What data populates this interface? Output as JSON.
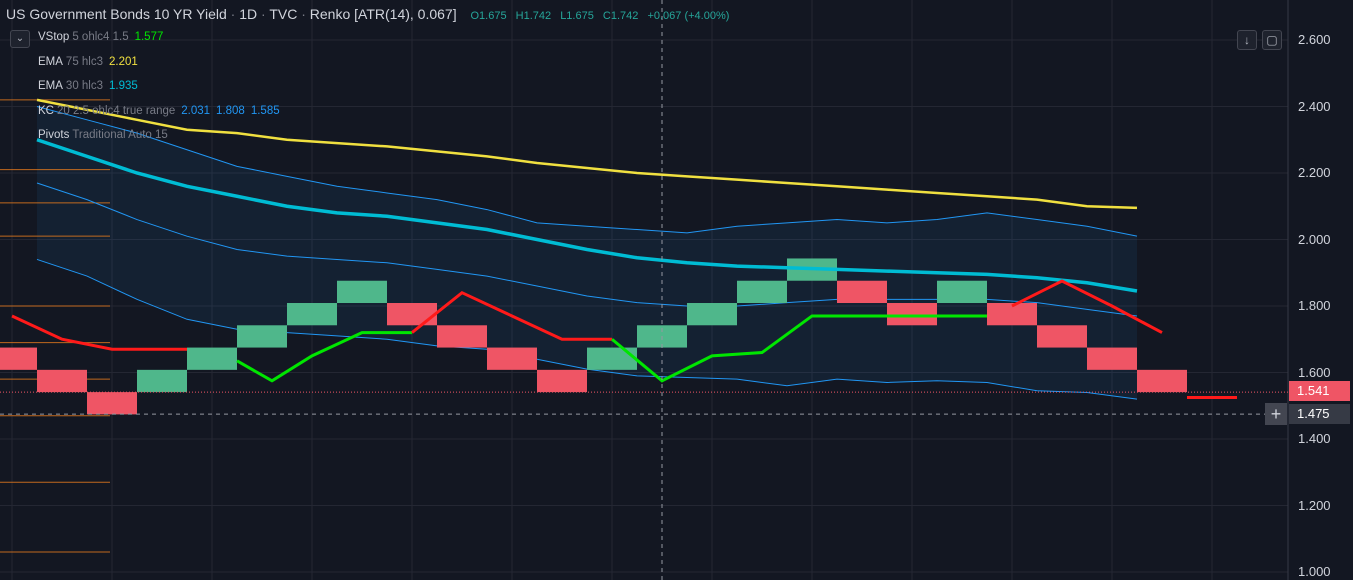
{
  "header": {
    "symbol": "US Government Bonds 10 YR Yield",
    "interval": "1D",
    "source": "TVC",
    "chart_type": "Renko [ATR(14), 0.067]",
    "open": "O1.675",
    "high": "H1.742",
    "low": "L1.675",
    "close": "C1.742",
    "change": "+0.067 (+4.00%)"
  },
  "legend": [
    {
      "name": "VStop",
      "params": "5 ohlc4 1.5",
      "values": [
        "1.577"
      ],
      "colors": [
        "#00e600"
      ]
    },
    {
      "name": "EMA",
      "params": "75 hlc3",
      "values": [
        "2.201"
      ],
      "colors": [
        "#f0e040"
      ]
    },
    {
      "name": "EMA",
      "params": "30 hlc3",
      "values": [
        "1.935"
      ],
      "colors": [
        "#00bcd4"
      ]
    },
    {
      "name": "KC",
      "params": "20 2.5 ohlc4 true range",
      "values": [
        "2.031",
        "1.808",
        "1.585"
      ],
      "colors": [
        "#2196f3",
        "#2196f3",
        "#2196f3"
      ]
    },
    {
      "name": "Pivots",
      "params": "Traditional Auto 15",
      "values": [],
      "colors": []
    }
  ],
  "axis": {
    "ticks": [
      "2.600",
      "2.400",
      "2.200",
      "2.000",
      "1.800",
      "1.600",
      "1.400",
      "1.200",
      "1.000"
    ],
    "last_price": "1.541",
    "crosshair_price": "1.475"
  },
  "icons": {
    "collapse": "chevron-down-icon",
    "scroll": "arrow-down-icon",
    "fullscreen": "fullscreen-icon",
    "crosshair": "plus-icon"
  },
  "colors": {
    "background": "#131722",
    "up": "#4fb78b",
    "down": "#ef5565",
    "ema75": "#f0e040",
    "ema30": "#00bcd4",
    "kc": "#2196f3",
    "vstop_up": "#00e600",
    "vstop_down": "#ff1a1a",
    "pivot": "#e0781e"
  },
  "chart_data": {
    "type": "renko",
    "ylim": [
      1.0,
      2.7
    ],
    "brick_size": 0.067,
    "bricks": [
      {
        "low": 1.608,
        "high": 1.675,
        "dir": "down"
      },
      {
        "low": 1.541,
        "high": 1.608,
        "dir": "down"
      },
      {
        "low": 1.474,
        "high": 1.541,
        "dir": "down"
      },
      {
        "low": 1.541,
        "high": 1.608,
        "dir": "up"
      },
      {
        "low": 1.608,
        "high": 1.675,
        "dir": "up"
      },
      {
        "low": 1.675,
        "high": 1.742,
        "dir": "up"
      },
      {
        "low": 1.742,
        "high": 1.809,
        "dir": "up"
      },
      {
        "low": 1.809,
        "high": 1.876,
        "dir": "up"
      },
      {
        "low": 1.742,
        "high": 1.809,
        "dir": "down"
      },
      {
        "low": 1.675,
        "high": 1.742,
        "dir": "down"
      },
      {
        "low": 1.608,
        "high": 1.675,
        "dir": "down"
      },
      {
        "low": 1.541,
        "high": 1.608,
        "dir": "down"
      },
      {
        "low": 1.608,
        "high": 1.675,
        "dir": "up"
      },
      {
        "low": 1.675,
        "high": 1.742,
        "dir": "up"
      },
      {
        "low": 1.742,
        "high": 1.809,
        "dir": "up"
      },
      {
        "low": 1.809,
        "high": 1.876,
        "dir": "up"
      },
      {
        "low": 1.876,
        "high": 1.943,
        "dir": "up"
      },
      {
        "low": 1.809,
        "high": 1.876,
        "dir": "down"
      },
      {
        "low": 1.742,
        "high": 1.809,
        "dir": "down"
      },
      {
        "low": 1.809,
        "high": 1.876,
        "dir": "up"
      },
      {
        "low": 1.742,
        "high": 1.809,
        "dir": "down"
      },
      {
        "low": 1.675,
        "high": 1.742,
        "dir": "down"
      },
      {
        "low": 1.608,
        "high": 1.675,
        "dir": "down"
      },
      {
        "low": 1.541,
        "high": 1.608,
        "dir": "down"
      }
    ],
    "ema75": [
      2.42,
      2.39,
      2.36,
      2.33,
      2.32,
      2.3,
      2.29,
      2.28,
      2.265,
      2.25,
      2.23,
      2.215,
      2.2,
      2.19,
      2.18,
      2.17,
      2.16,
      2.15,
      2.14,
      2.13,
      2.12,
      2.1,
      2.095
    ],
    "ema30": [
      2.3,
      2.25,
      2.2,
      2.16,
      2.13,
      2.1,
      2.08,
      2.07,
      2.05,
      2.03,
      2.0,
      1.97,
      1.945,
      1.93,
      1.92,
      1.915,
      1.91,
      1.905,
      1.9,
      1.895,
      1.885,
      1.87,
      1.845
    ],
    "kc_upper": [
      2.4,
      2.36,
      2.32,
      2.27,
      2.22,
      2.19,
      2.16,
      2.14,
      2.12,
      2.09,
      2.05,
      2.04,
      2.03,
      2.02,
      2.04,
      2.05,
      2.06,
      2.05,
      2.06,
      2.08,
      2.06,
      2.04,
      2.01
    ],
    "kc_middle": [
      2.17,
      2.12,
      2.06,
      2.01,
      1.97,
      1.95,
      1.94,
      1.93,
      1.91,
      1.89,
      1.86,
      1.83,
      1.81,
      1.8,
      1.8,
      1.81,
      1.82,
      1.82,
      1.82,
      1.82,
      1.81,
      1.79,
      1.77
    ],
    "kc_lower": [
      1.94,
      1.89,
      1.82,
      1.76,
      1.73,
      1.72,
      1.71,
      1.7,
      1.68,
      1.67,
      1.64,
      1.61,
      1.59,
      1.585,
      1.58,
      1.56,
      1.58,
      1.57,
      1.575,
      1.57,
      1.545,
      1.54,
      1.52
    ],
    "vstop": [
      {
        "up": false,
        "points": [
          [
            0,
            1.77
          ],
          [
            1,
            1.7
          ],
          [
            2,
            1.67
          ],
          [
            3,
            1.67
          ],
          [
            3.5,
            1.67
          ]
        ]
      },
      {
        "up": true,
        "points": [
          [
            4.5,
            1.635
          ],
          [
            5.2,
            1.575
          ],
          [
            6,
            1.65
          ],
          [
            7,
            1.72
          ],
          [
            8,
            1.72
          ]
        ]
      },
      {
        "up": false,
        "points": [
          [
            8,
            1.72
          ],
          [
            9,
            1.84
          ],
          [
            10,
            1.77
          ],
          [
            11,
            1.7
          ],
          [
            12,
            1.7
          ]
        ]
      },
      {
        "up": true,
        "points": [
          [
            12,
            1.7
          ],
          [
            13,
            1.575
          ],
          [
            14,
            1.65
          ],
          [
            15,
            1.66
          ],
          [
            16,
            1.77
          ],
          [
            17,
            1.77
          ],
          [
            19.5,
            1.77
          ]
        ]
      },
      {
        "up": false,
        "points": [
          [
            20,
            1.8
          ],
          [
            21,
            1.875
          ],
          [
            22,
            1.8
          ],
          [
            23,
            1.72
          ]
        ]
      },
      {
        "up": false,
        "points": [
          [
            23.5,
            1.525
          ],
          [
            24.5,
            1.525
          ]
        ]
      }
    ],
    "pivot_levels": [
      2.42,
      2.21,
      2.11,
      2.01,
      1.8,
      1.69,
      1.58,
      1.47,
      1.27,
      1.06
    ]
  }
}
